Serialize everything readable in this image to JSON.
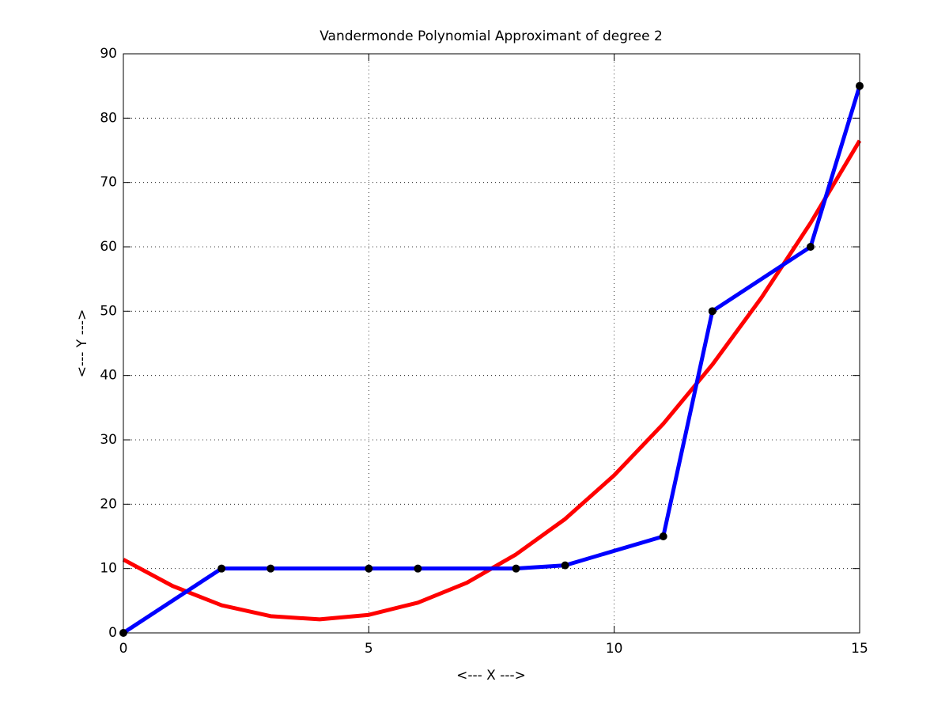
{
  "chart_data": {
    "type": "line",
    "title": "Vandermonde Polynomial Approximant of degree 2",
    "xlabel": "<--- X --->",
    "ylabel": "<--- Y --->",
    "xlim": [
      0,
      15
    ],
    "ylim": [
      0,
      90
    ],
    "xticks": [
      0,
      5,
      10,
      15
    ],
    "yticks": [
      0,
      10,
      20,
      30,
      40,
      50,
      60,
      70,
      80,
      90
    ],
    "grid": true,
    "series": [
      {
        "color": "#ff0000",
        "x": [
          0,
          1,
          2,
          3,
          4,
          5,
          6,
          7,
          8,
          9,
          10,
          11,
          12,
          13,
          14,
          15
        ],
        "values": [
          11.4,
          7.3,
          4.3,
          2.6,
          2.1,
          2.8,
          4.7,
          7.8,
          12.2,
          17.7,
          24.5,
          32.5,
          41.7,
          52.1,
          63.7,
          76.5
        ]
      },
      {
        "color": "#0000ff",
        "marker_color": "#000000",
        "x": [
          0,
          2,
          3,
          5,
          6,
          8,
          9,
          11,
          12,
          14,
          15
        ],
        "values": [
          0,
          10,
          10,
          10,
          10,
          10,
          10.5,
          15,
          50,
          60,
          85
        ]
      }
    ]
  }
}
